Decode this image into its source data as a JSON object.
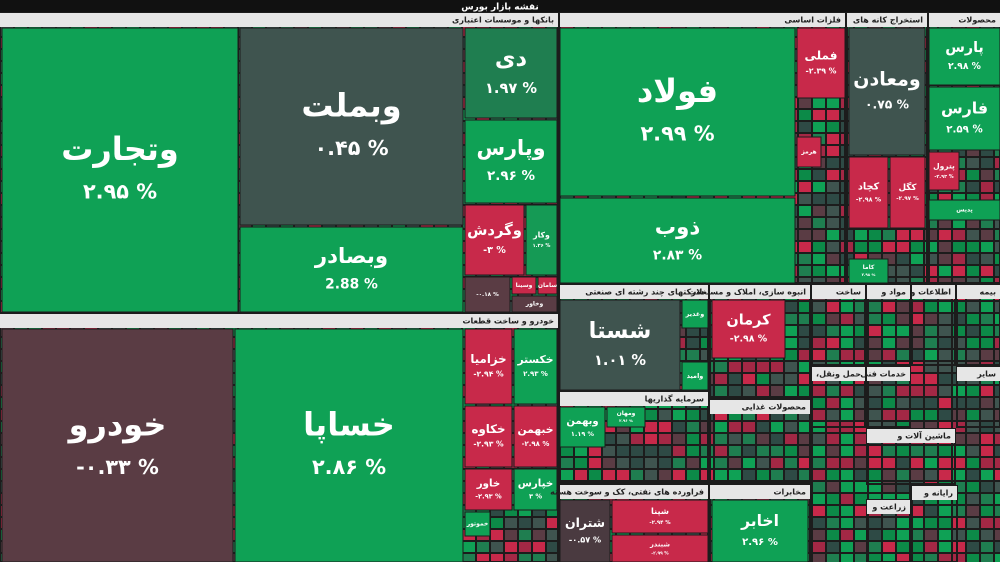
{
  "chart_data": {
    "type": "treemap",
    "title": "نقشه بازار بورس",
    "sectors": [
      {
        "name": "بانکها و موسسات اعتباری",
        "tiles": [
          {
            "name": "وتجارت",
            "value": 2.95,
            "value_label": "۲.۹۵ %",
            "color": "#0fa155"
          },
          {
            "name": "وبملت",
            "value": 0.45,
            "value_label": "۰.۴۵ %",
            "color": "#3f544f"
          },
          {
            "name": "وبصادر",
            "value": 2.88,
            "value_label": "2.88 %",
            "color": "#0fa155"
          },
          {
            "name": "دی",
            "value": 1.97,
            "value_label": "۱.۹۷ %",
            "color": "#1f7e50"
          },
          {
            "name": "وپارس",
            "value": 2.96,
            "value_label": "۲.۹۶ %",
            "color": "#0fa155"
          },
          {
            "name": "وگردش",
            "value": -3,
            "value_label": "-۳ %",
            "color": "#c8294a"
          },
          {
            "name": "وکار",
            "value": 1.36,
            "value_label": "۱.۳۶ %",
            "color": "#159a55"
          },
          {
            "value": -0.18,
            "value_label": "-۰.۱۸ %",
            "color": "#5a3c44"
          },
          {
            "name": "وسینا",
            "color": "#c8294a"
          },
          {
            "name": "سامان",
            "color": "#c8294a"
          },
          {
            "name": "وخاور",
            "color": "#5a3c44"
          }
        ]
      },
      {
        "name": "خودرو و ساخت قطعات",
        "tiles": [
          {
            "name": "خودرو",
            "value": -0.33,
            "value_label": "-۰.۳۳ %",
            "color": "#5a3c44"
          },
          {
            "name": "خساپا",
            "value": 2.86,
            "value_label": "۲.۸۶ %",
            "color": "#0fa155"
          },
          {
            "name": "خزامیا",
            "value": -2.94,
            "value_label": "-۲.۹۴ %",
            "color": "#c8294a"
          },
          {
            "name": "خکستر",
            "value": 2.93,
            "value_label": "۲.۹۳ %",
            "color": "#0fa155"
          },
          {
            "name": "خکاوه",
            "value": -2.93,
            "value_label": "-۲.۹۳ %",
            "color": "#c8294a"
          },
          {
            "name": "خبهمن",
            "value": -2.98,
            "value_label": "-۲.۹۸ %",
            "color": "#c8294a"
          },
          {
            "name": "خاور",
            "value": -2.93,
            "value_label": "-۲.۹۳ %",
            "color": "#c8294a"
          },
          {
            "name": "خپارس",
            "value": 3,
            "value_label": "۳ %",
            "color": "#0fa155"
          },
          {
            "name": "خموتور",
            "color": "#0fa155"
          }
        ]
      },
      {
        "name": "فلزات اساسی",
        "tiles": [
          {
            "name": "فولاد",
            "value": 2.99,
            "value_label": "۲.۹۹ %",
            "color": "#0fa155"
          },
          {
            "name": "ذوب",
            "value": 2.83,
            "value_label": "۲.۸۳ %",
            "color": "#0fa155"
          },
          {
            "name": "فملی",
            "value": -2.39,
            "value_label": "-۲.۳۹ %",
            "color": "#c8294a"
          },
          {
            "name": "هرمز",
            "color": "#c8294a"
          }
        ]
      },
      {
        "name": "استخراج کانه های",
        "tiles": [
          {
            "name": "ومعادن",
            "value": 0.75,
            "value_label": "۰.۷۵ %",
            "color": "#3f544f"
          },
          {
            "name": "کچاد",
            "value": -2.98,
            "value_label": "-۲.۹۸ %",
            "color": "#c8294a"
          },
          {
            "name": "کگل",
            "value": -2.97,
            "value_label": "-۲.۹۷ %",
            "color": "#c8294a"
          },
          {
            "name": "کاما",
            "value": 2.98,
            "value_label": "۲.۹۸ %",
            "color": "#0fa155"
          }
        ]
      },
      {
        "name": "محصولات",
        "tiles": [
          {
            "name": "پارس",
            "value": 2.98,
            "value_label": "۲.۹۸ %",
            "color": "#0fa155"
          },
          {
            "name": "فارس",
            "value": 2.59,
            "value_label": "۲.۵۹ %",
            "color": "#0fa155"
          },
          {
            "name": "پترول",
            "value": -2.94,
            "value_label": "-۲.۹۴ %",
            "color": "#c8294a"
          },
          {
            "name": "پدیس",
            "color": "#0fa155"
          }
        ]
      },
      {
        "name": "شرکتهای چند رشته ای صنعتی",
        "tiles": [
          {
            "name": "شستا",
            "value": 1.01,
            "value_label": "۱.۰۱ %",
            "color": "#3f544f"
          },
          {
            "name": "وغدیر",
            "color": "#0fa155"
          },
          {
            "name": "وامید",
            "color": "#0fa155"
          }
        ]
      },
      {
        "name": "انبوه سازی، املاک و مستغلات",
        "tiles": [
          {
            "name": "کرمان",
            "value": -2.98,
            "value_label": "-۲.۹۸ %",
            "color": "#c8294a"
          }
        ]
      },
      {
        "name": "سرمایه گذاریها",
        "tiles": [
          {
            "name": "وبهمن",
            "value": 1.19,
            "value_label": "۱.۱۹ %",
            "color": "#0fa155"
          },
          {
            "name": "ومهان",
            "value": 2.96,
            "value_label": "۲.۹۶ %",
            "color": "#0fa155"
          }
        ]
      },
      {
        "name": "فراورده های نفتی، کک و سوخت هسته",
        "tiles": [
          {
            "name": "شتران",
            "value": -0.57,
            "value_label": "-۰.۵۷ %",
            "color": "#4a3a40"
          },
          {
            "name": "شپنا",
            "value": -2.94,
            "value_label": "-۲.۹۴ %",
            "color": "#c8294a"
          },
          {
            "name": "شبندر",
            "value": -2.99,
            "value_label": "-۲.۹۹ %",
            "color": "#c8294a"
          }
        ]
      },
      {
        "name": "محصولات غذایی",
        "tiles": []
      },
      {
        "name": "مخابرات",
        "tiles": [
          {
            "name": "اخابر",
            "value": 2.96,
            "value_label": "۲.۹۶ %",
            "color": "#0fa155"
          }
        ]
      },
      {
        "name": "ساخت",
        "tiles": []
      },
      {
        "name": "مواد و",
        "tiles": []
      },
      {
        "name": "اطلاعات و",
        "tiles": []
      },
      {
        "name": "بیمه",
        "tiles": []
      },
      {
        "name": "حمل ونقل،",
        "tiles": []
      },
      {
        "name": "خدمات فنی",
        "tiles": []
      },
      {
        "name": "سایر",
        "tiles": []
      },
      {
        "name": "ماشین آلات و",
        "tiles": []
      },
      {
        "name": "رایانه و",
        "tiles": []
      },
      {
        "name": "زراعت و",
        "tiles": []
      }
    ]
  }
}
